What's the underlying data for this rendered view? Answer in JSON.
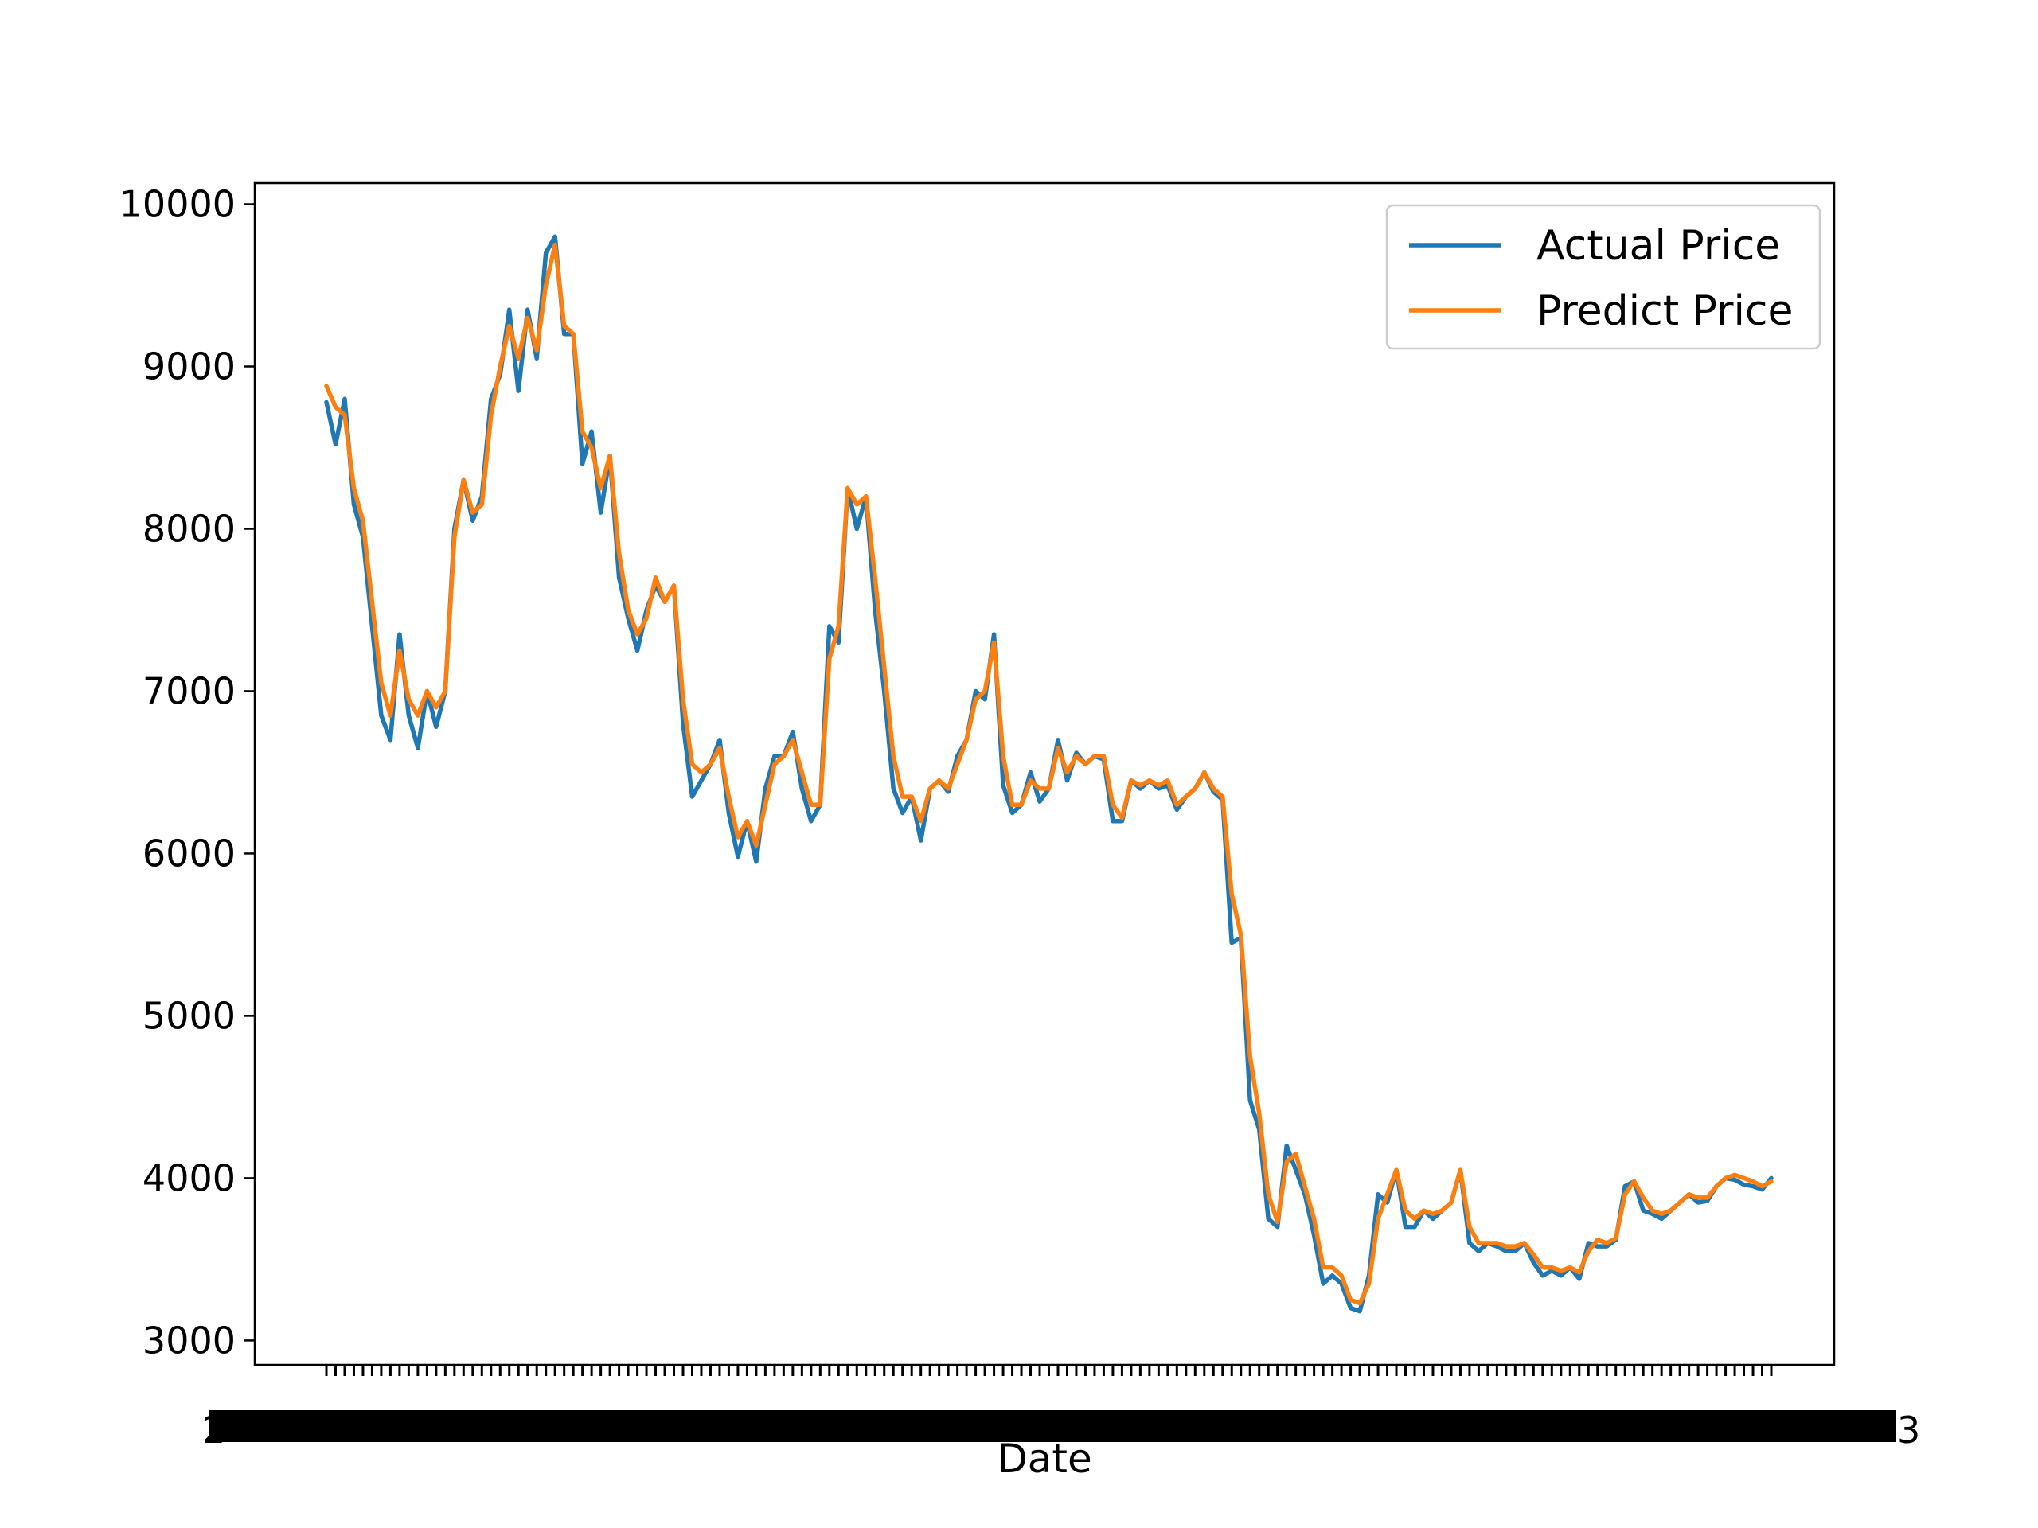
{
  "chart_data": {
    "type": "line",
    "title": "",
    "xlabel": "Date",
    "ylabel": "",
    "ylim": [
      2850,
      10130
    ],
    "yticks": [
      3000,
      4000,
      5000,
      6000,
      7000,
      8000,
      9000,
      10000
    ],
    "ytick_labels": [
      "3000",
      "4000",
      "5000",
      "6000",
      "7000",
      "8000",
      "9000",
      "10000"
    ],
    "x_tick_labels_note": "dense overlapping date labels, unreadable",
    "x_tick_label_fragments": {
      "first": "2",
      "last": "3"
    },
    "grid": false,
    "legend_position": "upper right",
    "series": [
      {
        "name": "Actual Price",
        "color": "#1f77b4",
        "values": [
          8780,
          8520,
          8800,
          8150,
          7950,
          7400,
          6850,
          6700,
          7350,
          6850,
          6650,
          7000,
          6780,
          7000,
          8000,
          8300,
          8050,
          8200,
          8800,
          8950,
          9350,
          8850,
          9350,
          9050,
          9700,
          9800,
          9200,
          9200,
          8400,
          8600,
          8100,
          8450,
          7700,
          7450,
          7250,
          7500,
          7650,
          7550,
          7650,
          6800,
          6350,
          6450,
          6550,
          6700,
          6250,
          5980,
          6200,
          5950,
          6400,
          6600,
          6600,
          6750,
          6400,
          6200,
          6300,
          7400,
          7300,
          8250,
          8000,
          8200,
          7500,
          7000,
          6400,
          6250,
          6350,
          6080,
          6400,
          6450,
          6380,
          6600,
          6700,
          7000,
          6950,
          7350,
          6420,
          6250,
          6300,
          6500,
          6320,
          6400,
          6700,
          6450,
          6620,
          6550,
          6600,
          6580,
          6200,
          6200,
          6450,
          6400,
          6450,
          6400,
          6420,
          6270,
          6350,
          6400,
          6500,
          6380,
          6330,
          5450,
          5480,
          4480,
          4300,
          3750,
          3700,
          4200,
          4050,
          3900,
          3650,
          3350,
          3400,
          3350,
          3200,
          3180,
          3400,
          3900,
          3850,
          4050,
          3700,
          3700,
          3800,
          3750,
          3800,
          3850,
          4050,
          3600,
          3550,
          3600,
          3580,
          3550,
          3550,
          3600,
          3480,
          3400,
          3430,
          3400,
          3450,
          3380,
          3600,
          3580,
          3580,
          3620,
          3950,
          3980,
          3800,
          3780,
          3750,
          3800,
          3850,
          3900,
          3850,
          3860,
          3950,
          4000,
          3990,
          3960,
          3950,
          3930,
          4000
        ]
      },
      {
        "name": "Predict Price",
        "color": "#ff7f0e",
        "values": [
          8880,
          8750,
          8700,
          8250,
          8050,
          7550,
          7050,
          6850,
          7250,
          6950,
          6850,
          7000,
          6900,
          7000,
          7950,
          8300,
          8100,
          8150,
          8700,
          9000,
          9250,
          9050,
          9300,
          9100,
          9500,
          9750,
          9250,
          9200,
          8600,
          8500,
          8250,
          8450,
          7850,
          7500,
          7350,
          7450,
          7700,
          7550,
          7650,
          6950,
          6550,
          6500,
          6550,
          6650,
          6350,
          6100,
          6200,
          6050,
          6300,
          6550,
          6600,
          6700,
          6500,
          6300,
          6300,
          7200,
          7400,
          8250,
          8150,
          8200,
          7700,
          7150,
          6600,
          6350,
          6350,
          6200,
          6400,
          6450,
          6400,
          6550,
          6700,
          6950,
          7000,
          7300,
          6600,
          6300,
          6300,
          6450,
          6400,
          6400,
          6650,
          6500,
          6600,
          6550,
          6600,
          6600,
          6300,
          6220,
          6450,
          6420,
          6450,
          6420,
          6450,
          6300,
          6350,
          6400,
          6500,
          6400,
          6350,
          5750,
          5500,
          4750,
          4400,
          3900,
          3730,
          4100,
          4150,
          3950,
          3750,
          3450,
          3450,
          3400,
          3250,
          3230,
          3350,
          3750,
          3900,
          4050,
          3800,
          3750,
          3800,
          3780,
          3800,
          3850,
          4050,
          3700,
          3600,
          3600,
          3600,
          3580,
          3580,
          3600,
          3530,
          3450,
          3450,
          3430,
          3450,
          3420,
          3550,
          3620,
          3600,
          3630,
          3900,
          3980,
          3880,
          3800,
          3780,
          3800,
          3850,
          3900,
          3880,
          3880,
          3950,
          4000,
          4020,
          4000,
          3980,
          3950,
          3980
        ]
      }
    ]
  }
}
